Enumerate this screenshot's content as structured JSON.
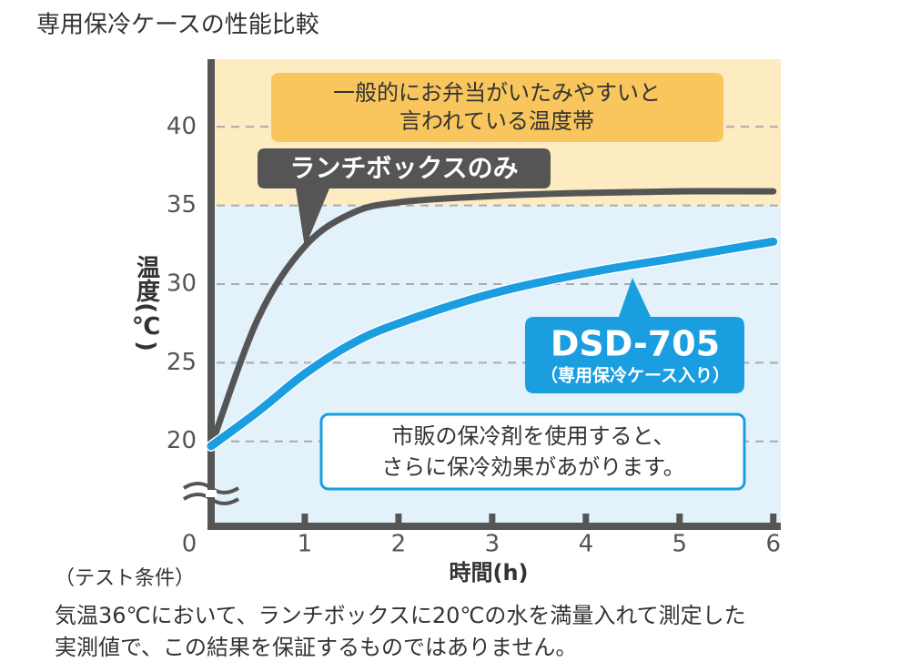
{
  "chart_data": {
    "type": "line",
    "title": "専用保冷ケースの性能比較",
    "x_label": "時間(h)",
    "y_label": "温度(℃)",
    "xlim": [
      0,
      6.08
    ],
    "xticks": [
      0,
      1,
      2,
      3,
      4,
      5,
      6
    ],
    "ylim": [
      14.6,
      44.3
    ],
    "yticks": [
      20,
      25,
      30,
      35,
      40
    ],
    "grid": true,
    "zones": [
      {
        "from": 35,
        "to": 44.3,
        "color": "#fdebc2"
      },
      {
        "from": 14.6,
        "to": 35,
        "color": "#e2f1fa"
      }
    ],
    "x": [
      0,
      0.5,
      1,
      1.5,
      2,
      3,
      4,
      5,
      6
    ],
    "series": [
      {
        "name": "ランチボックスのみ",
        "color": "#555555",
        "values": [
          19.7,
          27.8,
          32.4,
          34.5,
          35.2,
          35.6,
          35.8,
          35.9,
          35.9
        ]
      },
      {
        "name": "DSD-705",
        "sublabel": "（専用保冷ケース入り）",
        "color": "#1a9ee0",
        "values": [
          19.7,
          21.9,
          24.3,
          26.2,
          27.5,
          29.4,
          30.7,
          31.7,
          32.7
        ]
      }
    ],
    "annotations": [
      {
        "lines": [
          "一般的にお弁当がいたみやすいと",
          "言われている温度帯"
        ]
      },
      {
        "lines": [
          "市販の保冷剤を使用すると、",
          "さらに保冷効果があがります。"
        ]
      }
    ],
    "footnotes": [
      "（テスト条件）",
      "気温36℃において、ランチボックスに20℃の水を満量入れて測定した",
      "実測値で、この結果を保証するものではありません。"
    ]
  }
}
